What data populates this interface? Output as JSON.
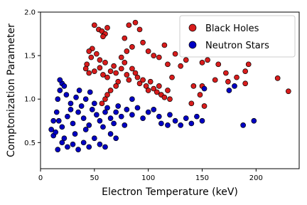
{
  "chart_data": {
    "type": "scatter",
    "x_label": "Electron Temperature (keV)",
    "y_label": "Comptonization Parameter",
    "xlim": [
      0,
      240
    ],
    "ylim": [
      0.2,
      2.0
    ],
    "xticks": [
      0,
      50,
      100,
      150,
      200
    ],
    "yticks": [
      0.5,
      {
        "value": 1,
        "label": "1.0"
      },
      1.5,
      {
        "value": 2,
        "label": "2.0"
      }
    ],
    "legend": "upper right",
    "series": [
      {
        "name": "Black Holes",
        "color": "#d81c1c",
        "x": [
          50,
          54,
          57,
          60,
          58,
          62,
          48,
          45,
          52,
          47,
          55,
          60,
          43,
          42,
          45,
          50,
          55,
          58,
          62,
          65,
          68,
          70,
          72,
          75,
          78,
          80,
          82,
          85,
          88,
          90,
          92,
          95,
          98,
          100,
          102,
          105,
          108,
          110,
          112,
          115,
          118,
          120,
          65,
          62,
          70,
          75,
          80,
          85,
          78,
          82,
          88,
          92,
          95,
          100,
          105,
          110,
          115,
          118,
          125,
          135,
          150,
          155,
          150,
          148,
          152,
          142,
          165,
          172,
          182,
          190,
          193,
          190,
          220,
          230,
          174,
          162,
          130,
          122,
          140,
          57,
          60
        ],
        "y": [
          1.85,
          1.8,
          1.78,
          1.75,
          1.72,
          1.82,
          1.58,
          1.55,
          1.52,
          1.48,
          1.45,
          1.42,
          1.4,
          1.35,
          1.3,
          1.32,
          1.36,
          1.28,
          1.25,
          1.32,
          1.38,
          1.3,
          1.2,
          1.35,
          1.42,
          1.28,
          1.22,
          1.35,
          1.3,
          1.25,
          1.18,
          1.22,
          1.15,
          1.1,
          1.2,
          1.12,
          1.08,
          1.15,
          1.05,
          1.02,
          1.1,
          1.0,
          1.1,
          1.05,
          1.15,
          1.48,
          1.55,
          1.6,
          1.7,
          1.85,
          1.88,
          1.8,
          1.65,
          1.55,
          1.5,
          1.48,
          1.62,
          1.4,
          1.52,
          1.45,
          1.42,
          1.45,
          1.15,
          1.05,
          0.92,
          1.15,
          1.4,
          1.3,
          1.25,
          1.32,
          1.4,
          1.18,
          1.24,
          1.09,
          1.2,
          1.22,
          1.38,
          1.25,
          0.95,
          0.95,
          1.0
        ]
      },
      {
        "name": "Neutron Stars",
        "color": "#0000c4",
        "x": [
          10,
          12,
          14,
          16,
          18,
          20,
          22,
          15,
          17,
          20,
          22,
          25,
          28,
          30,
          32,
          35,
          38,
          40,
          42,
          45,
          48,
          50,
          52,
          55,
          58,
          60,
          62,
          65,
          68,
          70,
          72,
          75,
          78,
          80,
          85,
          90,
          95,
          100,
          105,
          110,
          20,
          25,
          30,
          35,
          40,
          45,
          50,
          55,
          60,
          16,
          18,
          24,
          28,
          33,
          36,
          42,
          46,
          120,
          125,
          130,
          135,
          140,
          145,
          150,
          118,
          112,
          175,
          180,
          188,
          198,
          152,
          85,
          65,
          70,
          12
        ],
        "y": [
          0.65,
          0.58,
          0.62,
          1.0,
          1.1,
          1.18,
          1.15,
          0.85,
          0.75,
          0.68,
          0.55,
          0.8,
          0.88,
          0.72,
          0.6,
          0.85,
          0.92,
          0.78,
          0.65,
          0.7,
          0.88,
          0.95,
          0.82,
          0.75,
          0.68,
          0.85,
          0.9,
          0.78,
          0.72,
          0.85,
          0.92,
          0.8,
          0.7,
          0.88,
          0.82,
          0.9,
          0.78,
          0.85,
          0.88,
          0.8,
          0.5,
          0.45,
          0.48,
          0.42,
          0.5,
          0.45,
          0.55,
          0.48,
          0.45,
          0.42,
          1.22,
          1.05,
          0.95,
          1.02,
          1.1,
          1.0,
          1.08,
          0.82,
          0.75,
          0.7,
          0.78,
          0.72,
          0.8,
          0.75,
          0.7,
          0.72,
          1.1,
          1.15,
          0.7,
          0.75,
          1.12,
          1.0,
          0.6,
          0.55,
          0.75
        ]
      }
    ]
  }
}
